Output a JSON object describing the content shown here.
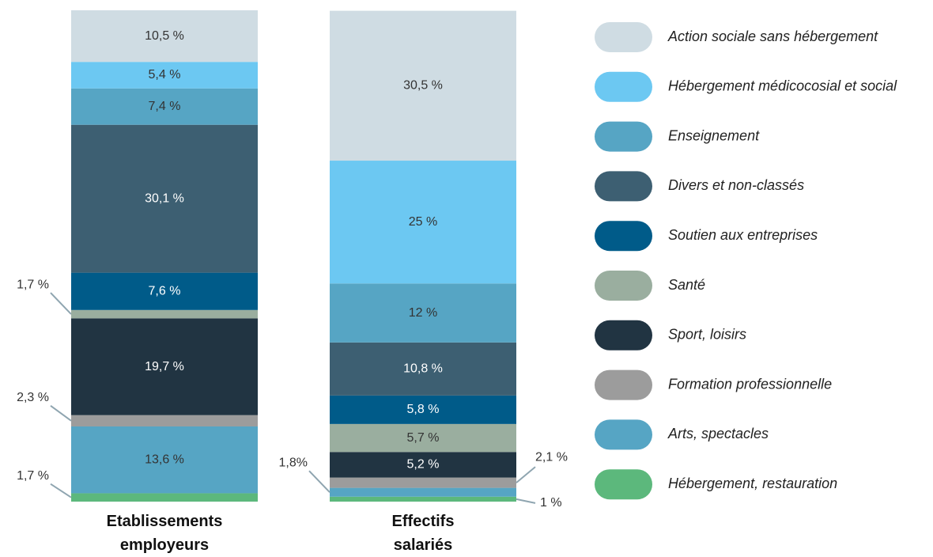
{
  "chart_data": {
    "type": "stacked_bar",
    "categories": [
      "Etablissements employeurs",
      "Effectifs salariés"
    ],
    "ylim": [
      0,
      100
    ],
    "series": [
      {
        "name": "Hébergement, restauration",
        "color": "#5cb87c",
        "values": [
          1.7,
          1
        ],
        "value_labels": [
          "1,7 %",
          "1 %"
        ]
      },
      {
        "name": "Arts, spectacles",
        "color": "#56a5c4",
        "values": [
          13.6,
          1.8
        ],
        "value_labels": [
          "13,6 %",
          "1,8%"
        ]
      },
      {
        "name": "Formation professionnelle",
        "color": "#9c9c9c",
        "values": [
          2.3,
          2.1
        ],
        "value_labels": [
          "2,3 %",
          "2,1 %"
        ]
      },
      {
        "name": "Sport, loisirs",
        "color": "#213442",
        "values": [
          19.7,
          5.2
        ],
        "value_labels": [
          "19,7 %",
          "5,2 %"
        ]
      },
      {
        "name": "Santé",
        "color": "#9aae9f",
        "values": [
          1.7,
          5.7
        ],
        "value_labels": [
          "1,7 %",
          "5,7 %"
        ]
      },
      {
        "name": "Soutien aux entreprises",
        "color": "#005b89",
        "values": [
          7.6,
          5.8
        ],
        "value_labels": [
          "7,6 %",
          "5,8 %"
        ]
      },
      {
        "name": "Divers et non-classés",
        "color": "#3d5f72",
        "values": [
          30.1,
          10.8
        ],
        "value_labels": [
          "30,1 %",
          "10,8 %"
        ]
      },
      {
        "name": "Enseignement",
        "color": "#56a5c4",
        "values": [
          7.4,
          12
        ],
        "value_labels": [
          "7,4 %",
          "12 %"
        ]
      },
      {
        "name": "Hébergement médicocosial et social",
        "color": "#6cc8f2",
        "values": [
          5.4,
          25
        ],
        "value_labels": [
          "5,4 %",
          "25 %"
        ]
      },
      {
        "name": "Action sociale sans hébergement",
        "color": "#cfdce3",
        "values": [
          10.5,
          30.5
        ],
        "value_labels": [
          "10,5 %",
          "30,5 %"
        ]
      }
    ]
  }
}
